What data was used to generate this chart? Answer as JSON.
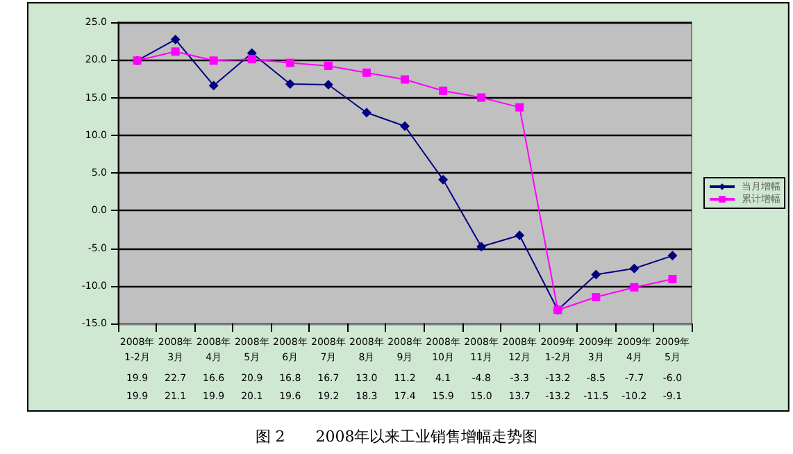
{
  "chart_data": {
    "type": "line",
    "title": "图 2　　2008年以来工业销售增幅走势图",
    "categories": [
      "2008年\n1-2月",
      "2008年\n3月",
      "2008年\n4月",
      "2008年\n5月",
      "2008年\n6月",
      "2008年\n7月",
      "2008年\n8月",
      "2008年\n9月",
      "2008年\n10月",
      "2008年\n11月",
      "2008年\n12月",
      "2009年\n1-2月",
      "2009年\n3月",
      "2009年\n4月",
      "2009年\n5月"
    ],
    "series": [
      {
        "name": "当月增幅",
        "color": "#000080",
        "marker": "diamond",
        "values": [
          19.9,
          22.7,
          16.6,
          20.9,
          16.8,
          16.7,
          13.0,
          11.2,
          4.1,
          -4.8,
          -3.3,
          -13.2,
          -8.5,
          -7.7,
          -6.0
        ],
        "value_labels": [
          "19.9",
          "22.7",
          "16.6",
          "20.9",
          "16.8",
          "16.7",
          "13.0",
          "11.2",
          "4.1",
          "-4.8",
          "-3.3",
          "-13.2",
          "-8.5",
          "-7.7",
          "-6.0"
        ]
      },
      {
        "name": "累计增幅",
        "color": "#ff00ff",
        "marker": "square",
        "values": [
          19.9,
          21.1,
          19.9,
          20.1,
          19.6,
          19.2,
          18.3,
          17.4,
          15.9,
          15.0,
          13.7,
          -13.2,
          -11.5,
          -10.2,
          -9.1
        ],
        "value_labels": [
          "19.9",
          "21.1",
          "19.9",
          "20.1",
          "19.6",
          "19.2",
          "18.3",
          "17.4",
          "15.9",
          "15.0",
          "13.7",
          "-13.2",
          "-11.5",
          "-10.2",
          "-9.1"
        ]
      }
    ],
    "ylim": [
      -15,
      25
    ],
    "yticks": [
      {
        "value": -15,
        "label": "-15.0"
      },
      {
        "value": -10,
        "label": "-10.0"
      },
      {
        "value": -5,
        "label": "-5.0"
      },
      {
        "value": 0,
        "label": "0.0"
      },
      {
        "value": 5,
        "label": "5.0"
      },
      {
        "value": 10,
        "label": "10.0"
      },
      {
        "value": 15,
        "label": "15.0"
      },
      {
        "value": 20,
        "label": "20.0"
      },
      {
        "value": 25,
        "label": "25.0"
      }
    ],
    "grid": "y",
    "legend": "right"
  }
}
